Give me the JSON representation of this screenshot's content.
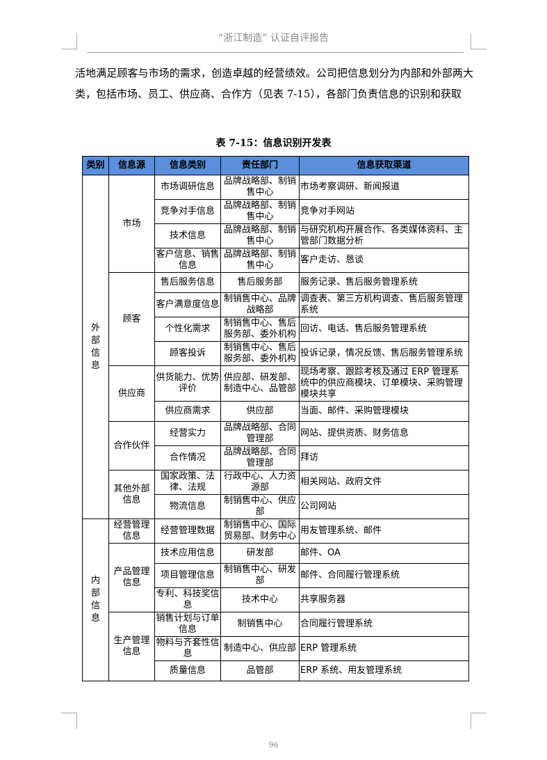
{
  "header": {
    "title": "“浙江制造” 认证自评报告"
  },
  "body": {
    "paragraph": "活地满足顾客与市场的需求，创造卓越的经营绩效。公司把信息划分为内部和外部两大类，包括市场、员工、供应商、合作方（见表 7-15），各部门负责信息的识别和获取"
  },
  "table": {
    "caption": "表 7-15：信息识别开发表",
    "columns": [
      "类别",
      "信息源",
      "信息类别",
      "责任部门",
      "信息获取渠道"
    ],
    "groups": [
      {
        "name": "外部信息",
        "sources": [
          {
            "name": "市场",
            "rows": [
              [
                "市场调研信息",
                "品牌战略部、制销售中心",
                "市场考察调研、新闻报道"
              ],
              [
                "竞争对手信息",
                "品牌战略部、制销售中心",
                "竞争对手网站"
              ],
              [
                "技术信息",
                "品牌战略部、制销售中心",
                "与研究机构开展合作、各类媒体资料、主管部门数据分析"
              ],
              [
                "客户信息、销售信息",
                "品牌战略部、制销售中心",
                "客户走访、恳谈"
              ]
            ]
          },
          {
            "name": "顾客",
            "rows": [
              [
                "售后服务信息",
                "售后服务部",
                "服务记录、售后服务管理系统"
              ],
              [
                "客户满意度信息",
                "制销售中心、品牌战略部",
                "调查表、第三方机构调查、售后服务管理系统"
              ],
              [
                "个性化需求",
                "制销售中心、售后服务部、委外机构",
                "回访、电话、售后服务管理系统"
              ],
              [
                "顾客投诉",
                "制销售中心、售后服务部、委外机构",
                "投诉记录，情况反馈、售后服务管理系统"
              ]
            ]
          },
          {
            "name": "供应商",
            "rows": [
              [
                "供货能力、优势评价",
                "供应部、研发部、制造中心、品管部",
                "现场考察、跟踪考核及通过 ERP 管理系统中的供应商模块、订单模块、采购管理模块共享"
              ],
              [
                "供应商需求",
                "供应部",
                "当面、邮件、采购管理模块"
              ]
            ]
          },
          {
            "name": "合作伙伴",
            "rows": [
              [
                "经营实力",
                "品牌战略部、合同管理部",
                "网站、提供资质、财务信息"
              ],
              [
                "合作情况",
                "品牌战略部、合同管理部",
                "拜访"
              ]
            ]
          },
          {
            "name": "其他外部信息",
            "rows": [
              [
                "国家政策、法律、法规",
                "行政中心、人力资源部",
                "相关网站、政府文件"
              ],
              [
                "物流信息",
                "制销售中心、供应部",
                "公司网站"
              ]
            ]
          }
        ]
      },
      {
        "name": "内部信息",
        "sources": [
          {
            "name": "经营管理信息",
            "rows": [
              [
                "经营管理数据",
                "制销售中心、国际贸易部、财务中心",
                "用友管理系统、邮件"
              ]
            ]
          },
          {
            "name": "产品管理信息",
            "rows": [
              [
                "技术应用信息",
                "研发部",
                "邮件、OA"
              ],
              [
                "项目管理信息",
                "制销售中心、研发部",
                "邮件、合同履行管理系统"
              ],
              [
                "专利、科技奖信息",
                "技术中心",
                "共享服务器"
              ]
            ]
          },
          {
            "name": "生产管理信息",
            "rows": [
              [
                "销售计划与订单信息",
                "制销售中心",
                "合同履行管理系统"
              ],
              [
                "物料与齐套性信息",
                "制造中心、供应部",
                "ERP 管理系统"
              ],
              [
                "质量信息",
                "品管部",
                "ERP 系统、用友管理系统"
              ]
            ]
          }
        ]
      }
    ]
  },
  "footer": {
    "page_number": "96"
  }
}
